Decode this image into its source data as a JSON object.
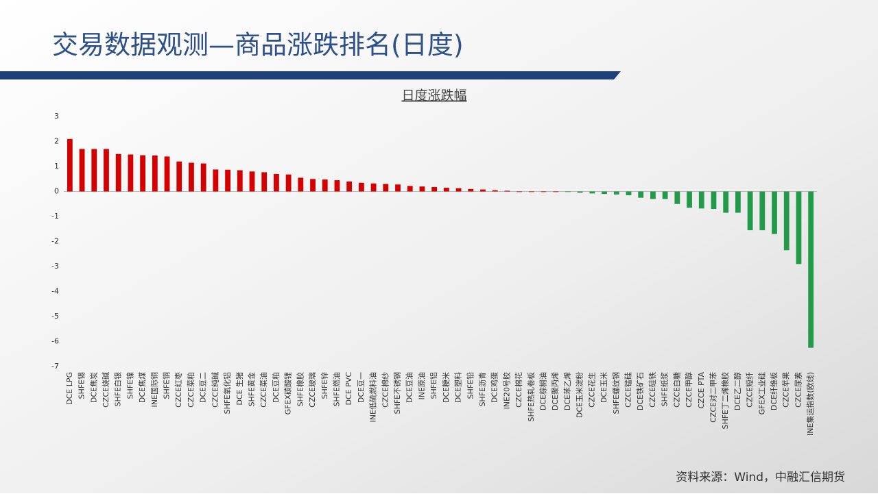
{
  "chart_data": {
    "type": "bar",
    "page_title": "交易数据观测—商品涨跌排名(日度)",
    "title": "日度涨跌幅",
    "source": "资料来源：Wind，中融汇信期货",
    "positive_color": "#d40000",
    "negative_color": "#23994a",
    "categories": [
      "DCE LPG",
      "SHFE锡",
      "DCE焦炭",
      "CZCE烧碱",
      "SHFE白银",
      "SHFE镍",
      "DCE焦煤",
      "INE国际铜",
      "SHFE铜",
      "CZCE红枣",
      "CZCE菜粕",
      "DCE豆二",
      "CZCE纯碱",
      "SHFE氧化铝",
      "DCE 生猪",
      "SHFE黄金",
      "CZCE菜油",
      "DCE豆粕",
      "GFEX碳酸锂",
      "SHFE橡胶",
      "CZCE玻璃",
      "SHFE锌",
      "SHFE燃油",
      "DCE PVC",
      "DCE豆一",
      "INE低硫燃料油",
      "CZCE棉纱",
      "SHFE不锈钢",
      "DCE豆油",
      "INE原油",
      "SHFE铝",
      "DCE粳米",
      "DCE塑料",
      "SHFE铅",
      "SHFE沥青",
      "DCE鸡蛋",
      "INE20号胶",
      "CZCE棉花",
      "SHFE热轧卷板",
      "DCE棕榈油",
      "DCE聚丙烯",
      "DCE苯乙烯",
      "DCE玉米淀粉",
      "CZCE花生",
      "DCE玉米",
      "SHFE螺纹钢",
      "CZCE锰硅",
      "DCE铁矿石",
      "CZCE硅铁",
      "SHFE纸浆",
      "CZCE白糖",
      "CZCE甲醇",
      "CZCE PTA",
      "CZCE对二甲苯",
      "SHFE丁二烯橡胶",
      "DCE乙二醇",
      "CZCE短纤",
      "GFEX工业硅",
      "DCE纤维板",
      "CZCE苹果",
      "CZCE尿素",
      "INE集运指数(欧线)"
    ],
    "values": [
      2.1,
      1.7,
      1.7,
      1.7,
      1.5,
      1.48,
      1.45,
      1.44,
      1.4,
      1.2,
      1.15,
      1.12,
      0.88,
      0.87,
      0.85,
      0.8,
      0.77,
      0.7,
      0.68,
      0.55,
      0.5,
      0.48,
      0.45,
      0.4,
      0.35,
      0.32,
      0.3,
      0.28,
      0.22,
      0.2,
      0.18,
      0.15,
      0.13,
      0.1,
      0.08,
      0.05,
      0.03,
      0,
      0,
      0,
      0,
      -0.02,
      -0.05,
      -0.08,
      -0.1,
      -0.12,
      -0.15,
      -0.25,
      -0.3,
      -0.3,
      -0.5,
      -0.65,
      -0.68,
      -0.7,
      -0.85,
      -0.85,
      -1.55,
      -1.55,
      -1.7,
      -2.35,
      -2.9,
      -6.25
    ],
    "ylim": [
      -7,
      3
    ],
    "yticks": [
      -7,
      -6,
      -5,
      -4,
      -3,
      -2,
      -1,
      0,
      1,
      2,
      3
    ]
  }
}
